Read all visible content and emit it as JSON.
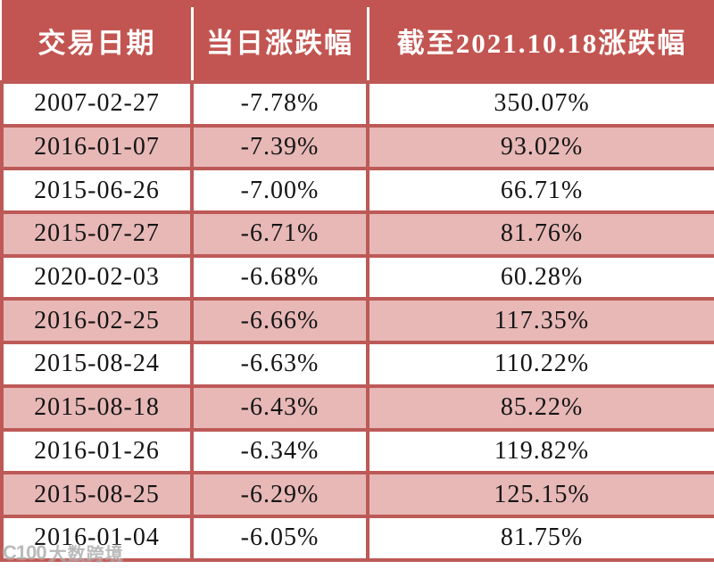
{
  "chart_data": {
    "type": "table",
    "columns": [
      "交易日期",
      "当日涨跌幅",
      "截至2021.10.18涨跌幅"
    ],
    "rows": [
      [
        "2007-02-27",
        "-7.78%",
        "350.07%"
      ],
      [
        "2016-01-07",
        "-7.39%",
        "93.02%"
      ],
      [
        "2015-06-26",
        "-7.00%",
        "66.71%"
      ],
      [
        "2015-07-27",
        "-6.71%",
        "81.76%"
      ],
      [
        "2020-02-03",
        "-6.68%",
        "60.28%"
      ],
      [
        "2016-02-25",
        "-6.66%",
        "117.35%"
      ],
      [
        "2015-08-24",
        "-6.63%",
        "110.22%"
      ],
      [
        "2015-08-18",
        "-6.43%",
        "85.22%"
      ],
      [
        "2016-01-26",
        "-6.34%",
        "119.82%"
      ],
      [
        "2015-08-25",
        "-6.29%",
        "125.15%"
      ],
      [
        "2016-01-04",
        "-6.05%",
        "81.75%"
      ]
    ],
    "layout": {
      "header_position": "top",
      "row_striping": "alternating white and pink, starting white",
      "grid": true
    }
  },
  "watermark": {
    "logo": "C100",
    "text": "大数跨境"
  },
  "colors": {
    "header_bg": "#C25551",
    "header_text": "#FFFFFF",
    "grid_border": "#BD5A57",
    "row_white": "#FFFFFF",
    "row_pink": "#E7B8B6",
    "body_text": "#141414"
  }
}
